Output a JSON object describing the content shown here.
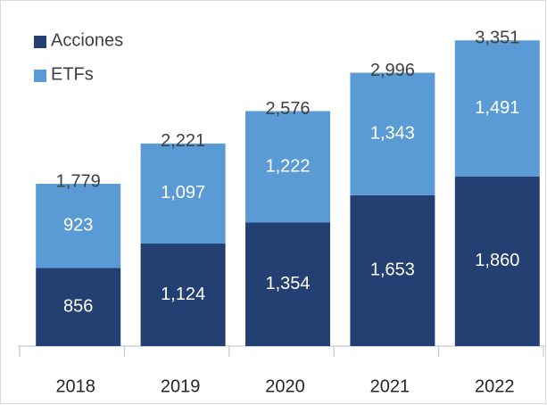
{
  "chart_data": {
    "type": "stacked_bar",
    "categories": [
      "2018",
      "2019",
      "2020",
      "2021",
      "2022"
    ],
    "series": [
      {
        "name": "Acciones",
        "color": "#243f72",
        "values": [
          856,
          1124,
          1354,
          1653,
          1860
        ],
        "value_labels": [
          "856",
          "1,124",
          "1,354",
          "1,653",
          "1,860"
        ]
      },
      {
        "name": "ETFs",
        "color": "#5b9bd5",
        "values": [
          923,
          1097,
          1222,
          1343,
          1491
        ],
        "value_labels": [
          "923",
          "1,097",
          "1,222",
          "1,343",
          "1,491"
        ]
      }
    ],
    "totals": [
      1779,
      2221,
      2576,
      2996,
      3351
    ],
    "total_labels": [
      "1,779",
      "2,221",
      "2,576",
      "2,996",
      "3,351"
    ],
    "ylim": [
      0,
      3500
    ],
    "legend": "top-left"
  }
}
